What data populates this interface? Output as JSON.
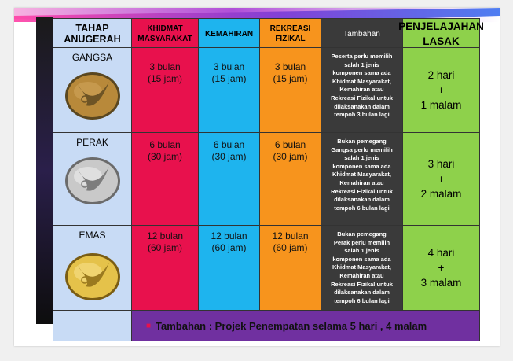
{
  "headers": {
    "tahap_line1": "TAHAP",
    "tahap_line2": "ANUGERAH",
    "khidmat_line1": "KHIDMAT",
    "khidmat_line2": "MASYARAKAT",
    "kemahiran": "KEMAHIRAN",
    "rekreasi_line1": "REKREASI",
    "rekreasi_line2": "FIZIKAL",
    "tambahan": "Tambahan",
    "lasak_line1": "PENJELAJAHAN",
    "lasak_line2": "LASAK"
  },
  "levels": [
    {
      "name": "GANGSA",
      "medal_color": "#b8893a",
      "khidmat": [
        "3 bulan",
        "(15 jam)"
      ],
      "kemahiran": [
        "3 bulan",
        "(15 jam)"
      ],
      "rekreasi": [
        "3 bulan",
        "(15 jam)"
      ],
      "tambahan": [
        "Peserta perlu memilih",
        "salah 1 jenis",
        "komponen sama ada",
        "Khidmat Masyarakat,",
        "Kemahiran atau",
        "Rekreasi Fizikal untuk",
        "dilaksanakan dalam",
        "tempoh 3 bulan lagi"
      ],
      "lasak": [
        "2 hari",
        "+",
        "1 malam"
      ]
    },
    {
      "name": "PERAK",
      "medal_color": "#c9c9c9",
      "khidmat": [
        "6 bulan",
        "(30 jam)"
      ],
      "kemahiran": [
        "6 bulan",
        "(30 jam)"
      ],
      "rekreasi": [
        "6 bulan",
        "(30 jam)"
      ],
      "tambahan": [
        "Bukan pemegang",
        "Gangsa perlu memilih",
        "salah 1 jenis",
        "komponen sama ada",
        "Khidmat Masyarakat,",
        "Kemahiran atau",
        "Rekreasi Fizikal untuk",
        "dilaksanakan dalam",
        "tempoh 6 bulan lagi"
      ],
      "lasak": [
        "3 hari",
        "+",
        "2 malam"
      ]
    },
    {
      "name": "EMAS",
      "medal_color": "#e5c24a",
      "khidmat": [
        "12 bulan",
        "(60 jam)"
      ],
      "kemahiran": [
        "12 bulan",
        "(60 jam)"
      ],
      "rekreasi": [
        "12 bulan",
        "(60 jam)"
      ],
      "tambahan": [
        "Bukan pemegang",
        "Perak perlu memilih",
        "salah 1 jenis",
        "komponen sama ada",
        "Khidmat Masyarakat,",
        "Kemahiran atau",
        "Rekreasi Fizikal untuk",
        "dilaksanakan dalam",
        "tempoh 6 bulan lagi"
      ],
      "lasak": [
        "4 hari",
        "+",
        "3 malam"
      ]
    }
  ],
  "footer": "Tambahan : Projek Penempatan selama 5 hari , 4 malam",
  "colors": {
    "khidmat": "#e8114d",
    "kemahiran": "#1eb4ee",
    "rekreasi": "#f7941d",
    "tambahan": "#3a3a3a",
    "lasak": "#8ed14b",
    "tahap": "#c8dbf5",
    "footer": "#7030a0"
  }
}
